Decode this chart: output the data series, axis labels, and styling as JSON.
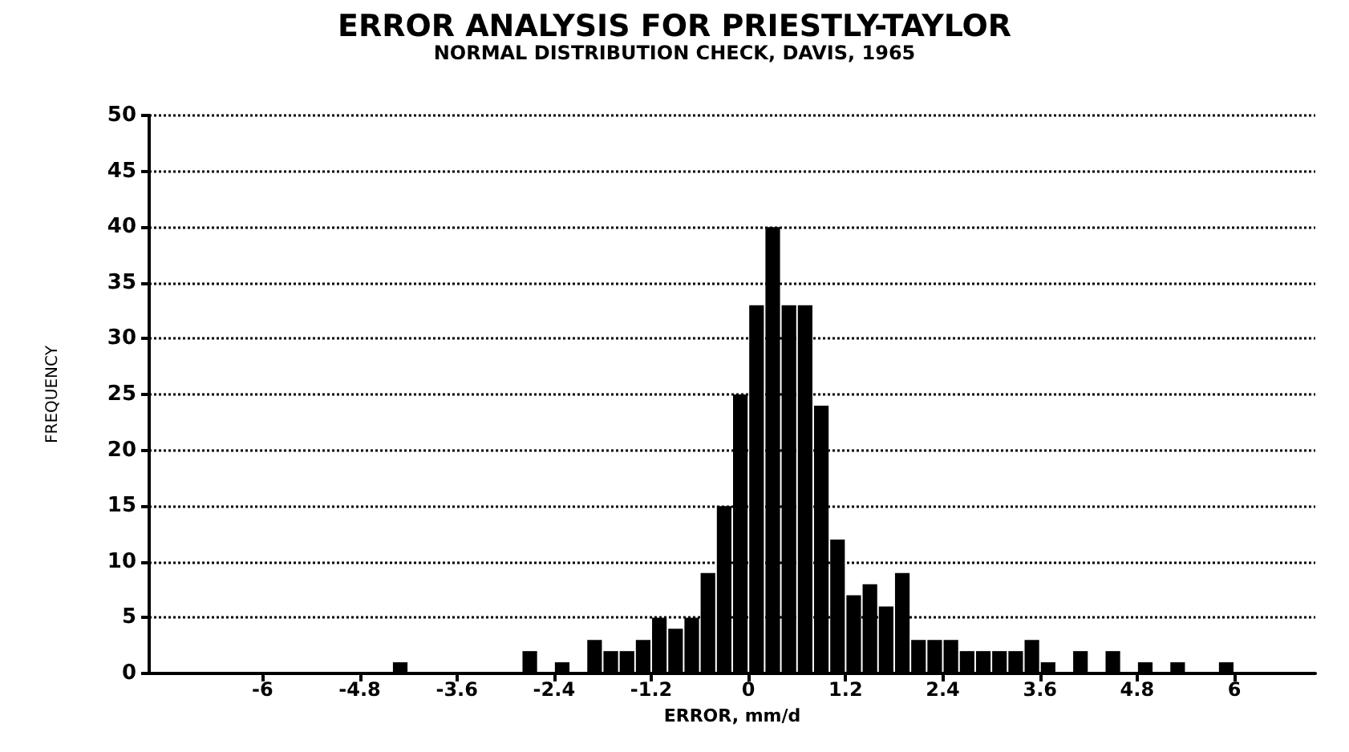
{
  "chart_data": {
    "type": "histogram",
    "title": "ERROR ANALYSIS FOR PRIESTLY-TAYLOR",
    "subtitle": "NORMAL DISTRIBUTION CHECK, DAVIS, 1965",
    "xlabel": "ERROR, mm/d",
    "ylabel": "FREQUENCY",
    "bins": [
      -4.4,
      -4.2,
      -4.0,
      -3.8,
      -3.6,
      -3.4,
      -3.2,
      -3.0,
      -2.8,
      -2.6,
      -2.4,
      -2.2,
      -2.0,
      -1.8,
      -1.6,
      -1.4,
      -1.2,
      -1.0,
      -0.8,
      -0.6,
      -0.4,
      -0.2,
      0,
      0.2,
      0.4,
      0.6,
      0.8,
      1.0,
      1.2,
      1.4,
      1.6,
      1.8,
      2.0,
      2.2,
      2.4,
      2.6,
      2.8,
      3.0,
      3.2,
      3.4,
      3.6,
      3.8,
      4.0,
      4.2,
      4.4,
      4.6,
      4.8,
      5.0,
      5.2,
      5.4,
      5.6,
      5.8,
      6.0
    ],
    "values": [
      1,
      0,
      0,
      0,
      0,
      0,
      0,
      0,
      2,
      0,
      1,
      0,
      3,
      2,
      2,
      3,
      5,
      4,
      5,
      9,
      15,
      25,
      33,
      40,
      33,
      33,
      24,
      12,
      7,
      8,
      6,
      9,
      3,
      3,
      3,
      2,
      2,
      2,
      2,
      3,
      1,
      0,
      2,
      0,
      2,
      0,
      1,
      0,
      1,
      0,
      0,
      1
    ],
    "color": "#000000",
    "xlim": [
      -7.4,
      7.0
    ],
    "xticks": [
      -6,
      -4.8,
      -3.6,
      -2.4,
      -1.2,
      0,
      1.2,
      2.4,
      3.6,
      4.8,
      6
    ],
    "ylim": [
      0,
      50
    ],
    "yticks": [
      0,
      5,
      10,
      15,
      20,
      25,
      30,
      35,
      40,
      45,
      50
    ],
    "grid": "y"
  }
}
